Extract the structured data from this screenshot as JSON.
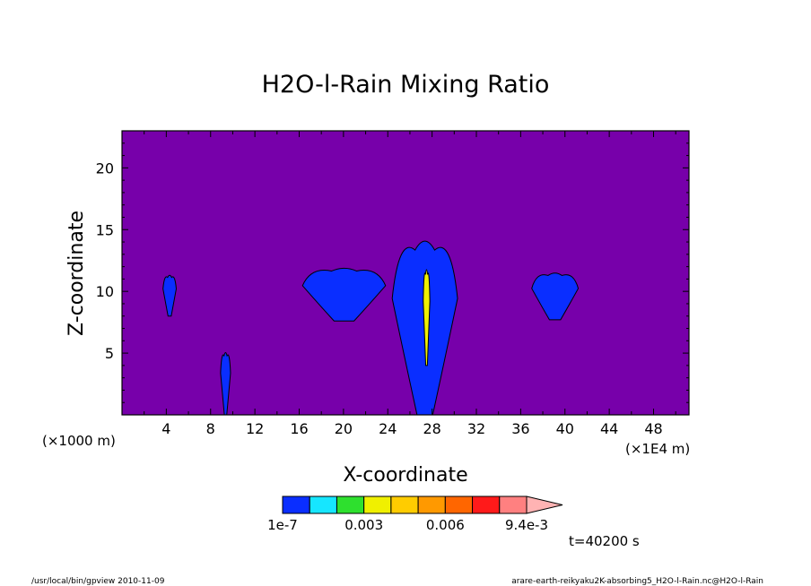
{
  "chart_data": {
    "type": "heatmap",
    "title": "H2O-l-Rain Mixing Ratio",
    "xlabel": "X-coordinate",
    "ylabel": "Z-coordinate",
    "x_unit_label": "(×1E4 m)",
    "y_unit_label": "(×1000 m)",
    "xlim": [
      0,
      51.2
    ],
    "ylim": [
      0,
      23
    ],
    "x_ticks": [
      4,
      8,
      12,
      16,
      20,
      24,
      28,
      32,
      36,
      40,
      44,
      48
    ],
    "y_ticks": [
      5,
      10,
      15,
      20
    ],
    "background_color": "#7700aa",
    "levels": [
      1e-07,
      0.0012,
      0.0022,
      0.003,
      0.0042,
      0.0052,
      0.006,
      0.0072,
      0.0082,
      0.0094
    ],
    "colorbar_colors": [
      "#0a2eff",
      "#16e6ff",
      "#2ee02e",
      "#f0f000",
      "#ffcc00",
      "#ff9900",
      "#ff6600",
      "#ff1a1a",
      "#ff8080",
      "#ffb3b3"
    ],
    "colorbar_labels": [
      "1e-7",
      "0.003",
      "0.006",
      "9.4e-3"
    ],
    "colorbar_label_index": [
      0,
      3,
      6,
      9
    ],
    "cells": [
      {
        "x": [
          3.7,
          4.9
        ],
        "z": [
          8.0,
          11.4
        ],
        "level": "1e-7"
      },
      {
        "x": [
          8.9,
          9.8
        ],
        "z": [
          0,
          5.2
        ],
        "level": "1e-7"
      },
      {
        "x": [
          16.3,
          23.8
        ],
        "z": [
          7.6,
          12.0
        ],
        "level": "1e-7"
      },
      {
        "x": [
          24.4,
          30.3
        ],
        "z": [
          0,
          14.5
        ],
        "level": "1e-7"
      },
      {
        "x": [
          37.0,
          41.2
        ],
        "z": [
          7.7,
          11.6
        ],
        "level": "1e-7"
      },
      {
        "x": [
          27.2,
          27.8
        ],
        "z": [
          4.0,
          12.0
        ],
        "level": "0.003"
      }
    ]
  },
  "annotations": {
    "time": "t=40200 s",
    "footer_left": "/usr/local/bin/gpview   2010-11-09",
    "footer_right": "arare-earth-reikyaku2K-absorbing5_H2O-l-Rain.nc@H2O-l-Rain"
  }
}
